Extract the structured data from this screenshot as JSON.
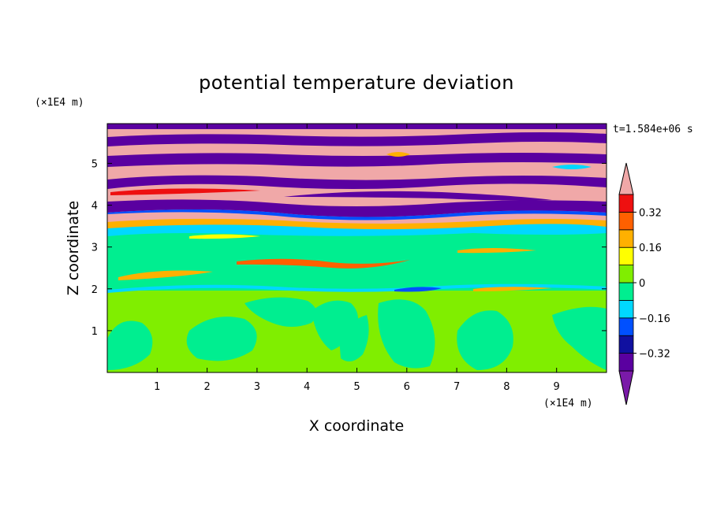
{
  "chart_data": {
    "type": "heatmap",
    "title": "potential temperature deviation",
    "xlabel": "X coordinate",
    "ylabel": "Z coordinate",
    "x_unit": "(×1E4 m)",
    "y_unit": "(×1E4 m)",
    "time_label": "t=1.584e+06 s",
    "xlim": [
      0,
      10
    ],
    "ylim": [
      0,
      5.95
    ],
    "x_ticks": [
      "1",
      "2",
      "3",
      "4",
      "5",
      "6",
      "7",
      "8",
      "9"
    ],
    "y_ticks": [
      "1",
      "2",
      "3",
      "4",
      "5"
    ],
    "colorbar": {
      "levels": [
        -0.48,
        -0.4,
        -0.32,
        -0.24,
        -0.16,
        -0.08,
        0,
        0.08,
        0.16,
        0.24,
        0.32,
        0.4,
        0.48
      ],
      "labels": [
        "0.32",
        "0.16",
        "0",
        "−0.16",
        "−0.32"
      ],
      "label_values": [
        0.32,
        0.16,
        0,
        -0.16,
        -0.32
      ],
      "colors": [
        "#7a1aa8",
        "#5a00a0",
        "#1010a0",
        "#0050ff",
        "#00d8ff",
        "#00ee90",
        "#80ee00",
        "#ffff00",
        "#ffb000",
        "#ff6000",
        "#ee1010",
        "#f0a8a8"
      ],
      "extend": "both"
    },
    "regions": [
      {
        "z": [
          0.0,
          1.85
        ],
        "value": 0.02,
        "note": "green/lime turbulent layer"
      },
      {
        "z": [
          1.85,
          3.5
        ],
        "value": -0.03,
        "note": "teal-green layer with warm streaks"
      },
      {
        "z": [
          3.5,
          5.95
        ],
        "value": 0.0,
        "note": "alternating pink and purple bands"
      }
    ]
  }
}
